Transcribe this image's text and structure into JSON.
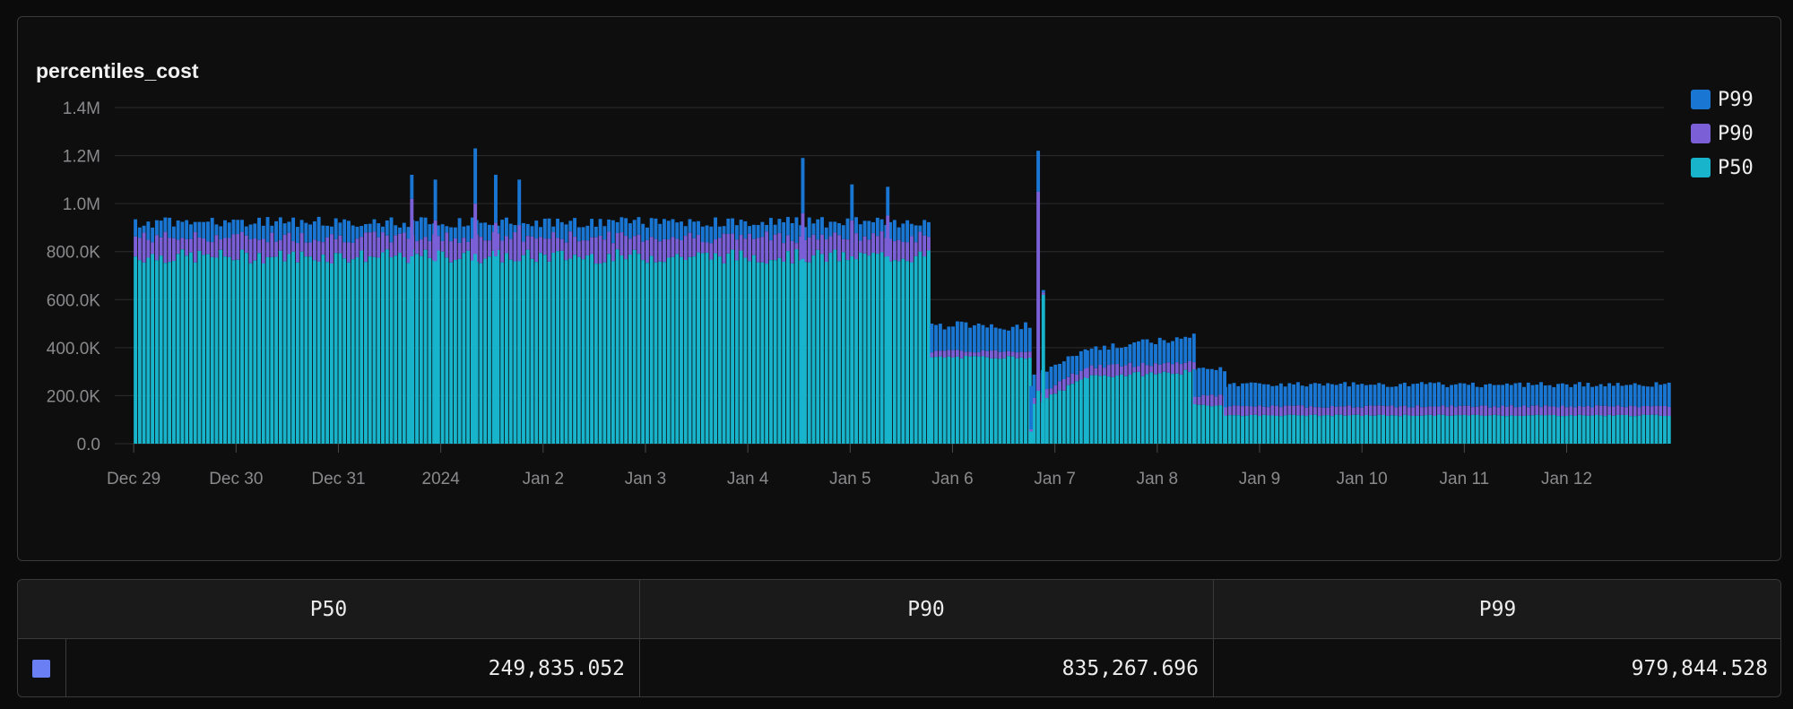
{
  "chart_data": {
    "type": "bar",
    "stacked": true,
    "title": "percentiles_cost",
    "y_ticks": [
      "0.0",
      "200.0K",
      "400.0K",
      "600.0K",
      "800.0K",
      "1.0M",
      "1.2M",
      "1.4M"
    ],
    "ylim": [
      0,
      1400000
    ],
    "x_ticks": [
      "Dec 29",
      "Dec 30",
      "Dec 31",
      "2024",
      "Jan 2",
      "Jan 3",
      "Jan 4",
      "Jan 5",
      "Jan 6",
      "Jan 7",
      "Jan 8",
      "Jan 9",
      "Jan 10",
      "Jan 11",
      "Jan 12"
    ],
    "x_range_days": [
      -0.08,
      14.95
    ],
    "grid": true,
    "legend_position": "top-right",
    "series": [
      {
        "name": "P99",
        "color": "#1976d2"
      },
      {
        "name": "P90",
        "color": "#7b5fd6"
      },
      {
        "name": "P50",
        "color": "#17b4cc"
      }
    ],
    "segments": [
      {
        "from_day": 0.0,
        "to_day": 7.78,
        "p50": 780000,
        "p90": 860000,
        "p99": 900000,
        "p50_jitter": 30000,
        "p90_jitter": 25000,
        "p99_jitter": 45000
      },
      {
        "from_day": 7.78,
        "to_day": 8.78,
        "p50": 360000,
        "p90": 385000,
        "p99": 470000,
        "p50_jitter": 6000,
        "p90_jitter": 6000,
        "p99_jitter": 40000
      },
      {
        "from_day": 8.78,
        "to_day": 9.3,
        "p50": 160000,
        "p90": 195000,
        "p99": 270000,
        "p50_jitter": 8000,
        "p90_jitter": 8000,
        "p99_jitter": 25000,
        "ramp_to_p50": 280000,
        "ramp_to_p90": 320000,
        "ramp_to_p99": 380000
      },
      {
        "from_day": 9.3,
        "to_day": 10.35,
        "p50": 280000,
        "p90": 320000,
        "p99": 380000,
        "p50_jitter": 10000,
        "p90_jitter": 10000,
        "p99_jitter": 30000,
        "ramp_to_p50": 300000,
        "ramp_to_p90": 340000,
        "ramp_to_p99": 430000
      },
      {
        "from_day": 10.35,
        "to_day": 10.65,
        "p50": 160000,
        "p90": 200000,
        "p99": 300000,
        "p50_jitter": 5000,
        "p90_jitter": 6000,
        "p99_jitter": 20000
      },
      {
        "from_day": 10.65,
        "to_day": 15.0,
        "p50": 118000,
        "p90": 155000,
        "p99": 235000,
        "p50_jitter": 3000,
        "p90_jitter": 5000,
        "p99_jitter": 22000
      }
    ],
    "spikes": [
      {
        "day": 2.7,
        "p50": 780000,
        "p90": 1020000,
        "p99": 1120000
      },
      {
        "day": 2.93,
        "p50": 760000,
        "p90": 930000,
        "p99": 1100000
      },
      {
        "day": 3.32,
        "p50": 790000,
        "p90": 1000000,
        "p99": 1230000
      },
      {
        "day": 3.52,
        "p50": 780000,
        "p90": 920000,
        "p99": 1120000
      },
      {
        "day": 3.75,
        "p50": 760000,
        "p90": 910000,
        "p99": 1100000
      },
      {
        "day": 6.52,
        "p50": 770000,
        "p90": 960000,
        "p99": 1190000
      },
      {
        "day": 7.0,
        "p50": 780000,
        "p90": 930000,
        "p99": 1080000
      },
      {
        "day": 7.35,
        "p50": 780000,
        "p90": 950000,
        "p99": 1070000
      },
      {
        "day": 8.82,
        "p50": 220000,
        "p90": 1050000,
        "p99": 1220000
      },
      {
        "day": 8.87,
        "p50": 620000,
        "p90": 630000,
        "p99": 640000
      },
      {
        "day": 8.75,
        "p50": 50000,
        "p90": 60000,
        "p99": 240000
      }
    ]
  },
  "legend": [
    {
      "label": "P99",
      "color": "#1976d2"
    },
    {
      "label": "P90",
      "color": "#7b5fd6"
    },
    {
      "label": "P50",
      "color": "#17b4cc"
    }
  ],
  "stats_table": {
    "headers": [
      "P50",
      "P90",
      "P99"
    ],
    "swatch_color": "#6b7ff5",
    "values": [
      "249,835.052",
      "835,267.696",
      "979,844.528"
    ]
  }
}
